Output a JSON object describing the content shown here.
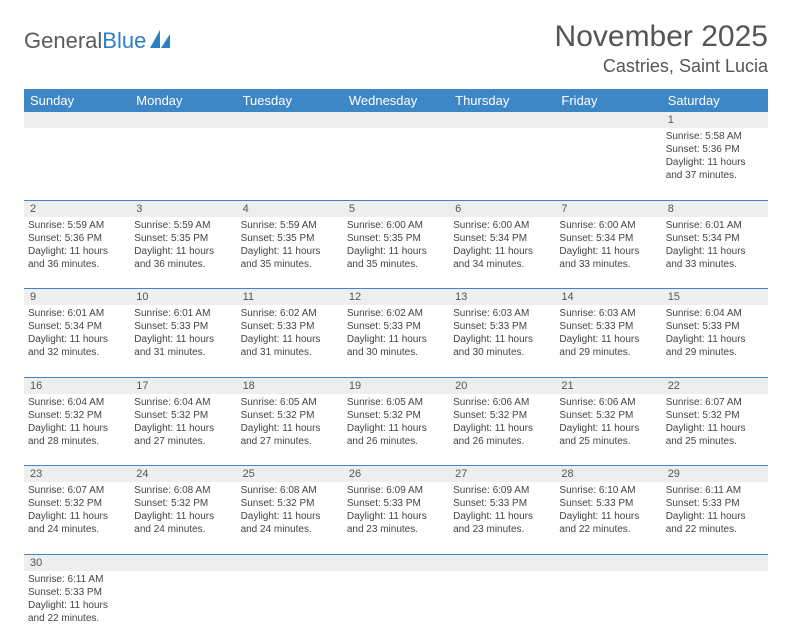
{
  "logo": {
    "text1": "General",
    "text2": "Blue"
  },
  "title": "November 2025",
  "location": "Castries, Saint Lucia",
  "colors": {
    "header_bg": "#3d87c7",
    "header_text": "#ffffff",
    "daynum_bg": "#eeeeee",
    "text": "#444444",
    "border": "#3d87c7"
  },
  "day_names": [
    "Sunday",
    "Monday",
    "Tuesday",
    "Wednesday",
    "Thursday",
    "Friday",
    "Saturday"
  ],
  "weeks": [
    {
      "nums": [
        "",
        "",
        "",
        "",
        "",
        "",
        "1"
      ],
      "cells": [
        null,
        null,
        null,
        null,
        null,
        null,
        {
          "sunrise": "Sunrise: 5:58 AM",
          "sunset": "Sunset: 5:36 PM",
          "day1": "Daylight: 11 hours",
          "day2": "and 37 minutes."
        }
      ]
    },
    {
      "nums": [
        "2",
        "3",
        "4",
        "5",
        "6",
        "7",
        "8"
      ],
      "cells": [
        {
          "sunrise": "Sunrise: 5:59 AM",
          "sunset": "Sunset: 5:36 PM",
          "day1": "Daylight: 11 hours",
          "day2": "and 36 minutes."
        },
        {
          "sunrise": "Sunrise: 5:59 AM",
          "sunset": "Sunset: 5:35 PM",
          "day1": "Daylight: 11 hours",
          "day2": "and 36 minutes."
        },
        {
          "sunrise": "Sunrise: 5:59 AM",
          "sunset": "Sunset: 5:35 PM",
          "day1": "Daylight: 11 hours",
          "day2": "and 35 minutes."
        },
        {
          "sunrise": "Sunrise: 6:00 AM",
          "sunset": "Sunset: 5:35 PM",
          "day1": "Daylight: 11 hours",
          "day2": "and 35 minutes."
        },
        {
          "sunrise": "Sunrise: 6:00 AM",
          "sunset": "Sunset: 5:34 PM",
          "day1": "Daylight: 11 hours",
          "day2": "and 34 minutes."
        },
        {
          "sunrise": "Sunrise: 6:00 AM",
          "sunset": "Sunset: 5:34 PM",
          "day1": "Daylight: 11 hours",
          "day2": "and 33 minutes."
        },
        {
          "sunrise": "Sunrise: 6:01 AM",
          "sunset": "Sunset: 5:34 PM",
          "day1": "Daylight: 11 hours",
          "day2": "and 33 minutes."
        }
      ]
    },
    {
      "nums": [
        "9",
        "10",
        "11",
        "12",
        "13",
        "14",
        "15"
      ],
      "cells": [
        {
          "sunrise": "Sunrise: 6:01 AM",
          "sunset": "Sunset: 5:34 PM",
          "day1": "Daylight: 11 hours",
          "day2": "and 32 minutes."
        },
        {
          "sunrise": "Sunrise: 6:01 AM",
          "sunset": "Sunset: 5:33 PM",
          "day1": "Daylight: 11 hours",
          "day2": "and 31 minutes."
        },
        {
          "sunrise": "Sunrise: 6:02 AM",
          "sunset": "Sunset: 5:33 PM",
          "day1": "Daylight: 11 hours",
          "day2": "and 31 minutes."
        },
        {
          "sunrise": "Sunrise: 6:02 AM",
          "sunset": "Sunset: 5:33 PM",
          "day1": "Daylight: 11 hours",
          "day2": "and 30 minutes."
        },
        {
          "sunrise": "Sunrise: 6:03 AM",
          "sunset": "Sunset: 5:33 PM",
          "day1": "Daylight: 11 hours",
          "day2": "and 30 minutes."
        },
        {
          "sunrise": "Sunrise: 6:03 AM",
          "sunset": "Sunset: 5:33 PM",
          "day1": "Daylight: 11 hours",
          "day2": "and 29 minutes."
        },
        {
          "sunrise": "Sunrise: 6:04 AM",
          "sunset": "Sunset: 5:33 PM",
          "day1": "Daylight: 11 hours",
          "day2": "and 29 minutes."
        }
      ]
    },
    {
      "nums": [
        "16",
        "17",
        "18",
        "19",
        "20",
        "21",
        "22"
      ],
      "cells": [
        {
          "sunrise": "Sunrise: 6:04 AM",
          "sunset": "Sunset: 5:32 PM",
          "day1": "Daylight: 11 hours",
          "day2": "and 28 minutes."
        },
        {
          "sunrise": "Sunrise: 6:04 AM",
          "sunset": "Sunset: 5:32 PM",
          "day1": "Daylight: 11 hours",
          "day2": "and 27 minutes."
        },
        {
          "sunrise": "Sunrise: 6:05 AM",
          "sunset": "Sunset: 5:32 PM",
          "day1": "Daylight: 11 hours",
          "day2": "and 27 minutes."
        },
        {
          "sunrise": "Sunrise: 6:05 AM",
          "sunset": "Sunset: 5:32 PM",
          "day1": "Daylight: 11 hours",
          "day2": "and 26 minutes."
        },
        {
          "sunrise": "Sunrise: 6:06 AM",
          "sunset": "Sunset: 5:32 PM",
          "day1": "Daylight: 11 hours",
          "day2": "and 26 minutes."
        },
        {
          "sunrise": "Sunrise: 6:06 AM",
          "sunset": "Sunset: 5:32 PM",
          "day1": "Daylight: 11 hours",
          "day2": "and 25 minutes."
        },
        {
          "sunrise": "Sunrise: 6:07 AM",
          "sunset": "Sunset: 5:32 PM",
          "day1": "Daylight: 11 hours",
          "day2": "and 25 minutes."
        }
      ]
    },
    {
      "nums": [
        "23",
        "24",
        "25",
        "26",
        "27",
        "28",
        "29"
      ],
      "cells": [
        {
          "sunrise": "Sunrise: 6:07 AM",
          "sunset": "Sunset: 5:32 PM",
          "day1": "Daylight: 11 hours",
          "day2": "and 24 minutes."
        },
        {
          "sunrise": "Sunrise: 6:08 AM",
          "sunset": "Sunset: 5:32 PM",
          "day1": "Daylight: 11 hours",
          "day2": "and 24 minutes."
        },
        {
          "sunrise": "Sunrise: 6:08 AM",
          "sunset": "Sunset: 5:32 PM",
          "day1": "Daylight: 11 hours",
          "day2": "and 24 minutes."
        },
        {
          "sunrise": "Sunrise: 6:09 AM",
          "sunset": "Sunset: 5:33 PM",
          "day1": "Daylight: 11 hours",
          "day2": "and 23 minutes."
        },
        {
          "sunrise": "Sunrise: 6:09 AM",
          "sunset": "Sunset: 5:33 PM",
          "day1": "Daylight: 11 hours",
          "day2": "and 23 minutes."
        },
        {
          "sunrise": "Sunrise: 6:10 AM",
          "sunset": "Sunset: 5:33 PM",
          "day1": "Daylight: 11 hours",
          "day2": "and 22 minutes."
        },
        {
          "sunrise": "Sunrise: 6:11 AM",
          "sunset": "Sunset: 5:33 PM",
          "day1": "Daylight: 11 hours",
          "day2": "and 22 minutes."
        }
      ]
    },
    {
      "nums": [
        "30",
        "",
        "",
        "",
        "",
        "",
        ""
      ],
      "cells": [
        {
          "sunrise": "Sunrise: 6:11 AM",
          "sunset": "Sunset: 5:33 PM",
          "day1": "Daylight: 11 hours",
          "day2": "and 22 minutes."
        },
        null,
        null,
        null,
        null,
        null,
        null
      ]
    }
  ]
}
